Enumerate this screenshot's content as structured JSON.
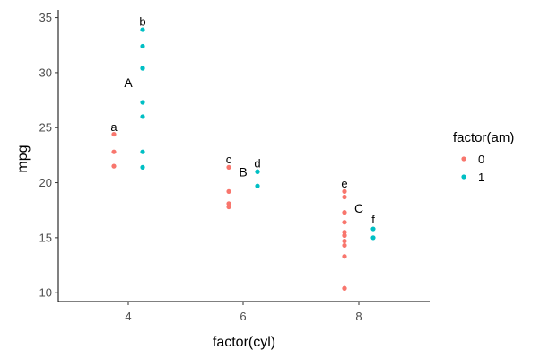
{
  "chart_data": {
    "type": "scatter",
    "title": "",
    "xlabel": "factor(cyl)",
    "ylabel": "mpg",
    "categories": [
      "4",
      "6",
      "8"
    ],
    "y_ticks": [
      "10",
      "15",
      "20",
      "25",
      "30",
      "35"
    ],
    "ylim": [
      9.2,
      35.7
    ],
    "grid": false,
    "legend": {
      "title": "factor(am)",
      "placement": "right",
      "entries": [
        {
          "label": "0",
          "color": "#F8766D"
        },
        {
          "label": "1",
          "color": "#00BFC4"
        }
      ]
    },
    "series": [
      {
        "name": "0",
        "color": "#F8766D",
        "points": [
          {
            "x": "4",
            "y": 24.4
          },
          {
            "x": "4",
            "y": 22.8
          },
          {
            "x": "4",
            "y": 21.5
          },
          {
            "x": "6",
            "y": 21.4
          },
          {
            "x": "6",
            "y": 18.1
          },
          {
            "x": "6",
            "y": 19.2
          },
          {
            "x": "6",
            "y": 17.8
          },
          {
            "x": "8",
            "y": 18.7
          },
          {
            "x": "8",
            "y": 14.3
          },
          {
            "x": "8",
            "y": 16.4
          },
          {
            "x": "8",
            "y": 17.3
          },
          {
            "x": "8",
            "y": 15.2
          },
          {
            "x": "8",
            "y": 10.4
          },
          {
            "x": "8",
            "y": 10.4
          },
          {
            "x": "8",
            "y": 14.7
          },
          {
            "x": "8",
            "y": 15.5
          },
          {
            "x": "8",
            "y": 15.2
          },
          {
            "x": "8",
            "y": 13.3
          },
          {
            "x": "8",
            "y": 19.2
          }
        ]
      },
      {
        "name": "1",
        "color": "#00BFC4",
        "points": [
          {
            "x": "4",
            "y": 22.8
          },
          {
            "x": "4",
            "y": 32.4
          },
          {
            "x": "4",
            "y": 30.4
          },
          {
            "x": "4",
            "y": 33.9
          },
          {
            "x": "4",
            "y": 27.3
          },
          {
            "x": "4",
            "y": 26.0
          },
          {
            "x": "4",
            "y": 30.4
          },
          {
            "x": "4",
            "y": 21.4
          },
          {
            "x": "6",
            "y": 21.0
          },
          {
            "x": "6",
            "y": 21.0
          },
          {
            "x": "6",
            "y": 19.7
          },
          {
            "x": "8",
            "y": 15.8
          },
          {
            "x": "8",
            "y": 15.0
          }
        ]
      }
    ],
    "annotations": [
      {
        "text": "a",
        "x": "4",
        "group": "0",
        "y": 25.0
      },
      {
        "text": "b",
        "x": "4",
        "group": "1",
        "y": 34.6
      },
      {
        "text": "c",
        "x": "6",
        "group": "0",
        "y": 22.1
      },
      {
        "text": "d",
        "x": "6",
        "group": "1",
        "y": 21.7
      },
      {
        "text": "e",
        "x": "8",
        "group": "0",
        "y": 19.9
      },
      {
        "text": "f",
        "x": "8",
        "group": "1",
        "y": 16.6
      },
      {
        "text": "A",
        "x": "4",
        "group": "all",
        "y": 29.0
      },
      {
        "text": "B",
        "x": "6",
        "group": "all",
        "y": 20.9
      },
      {
        "text": "C",
        "x": "8",
        "group": "all",
        "y": 17.6
      }
    ]
  }
}
